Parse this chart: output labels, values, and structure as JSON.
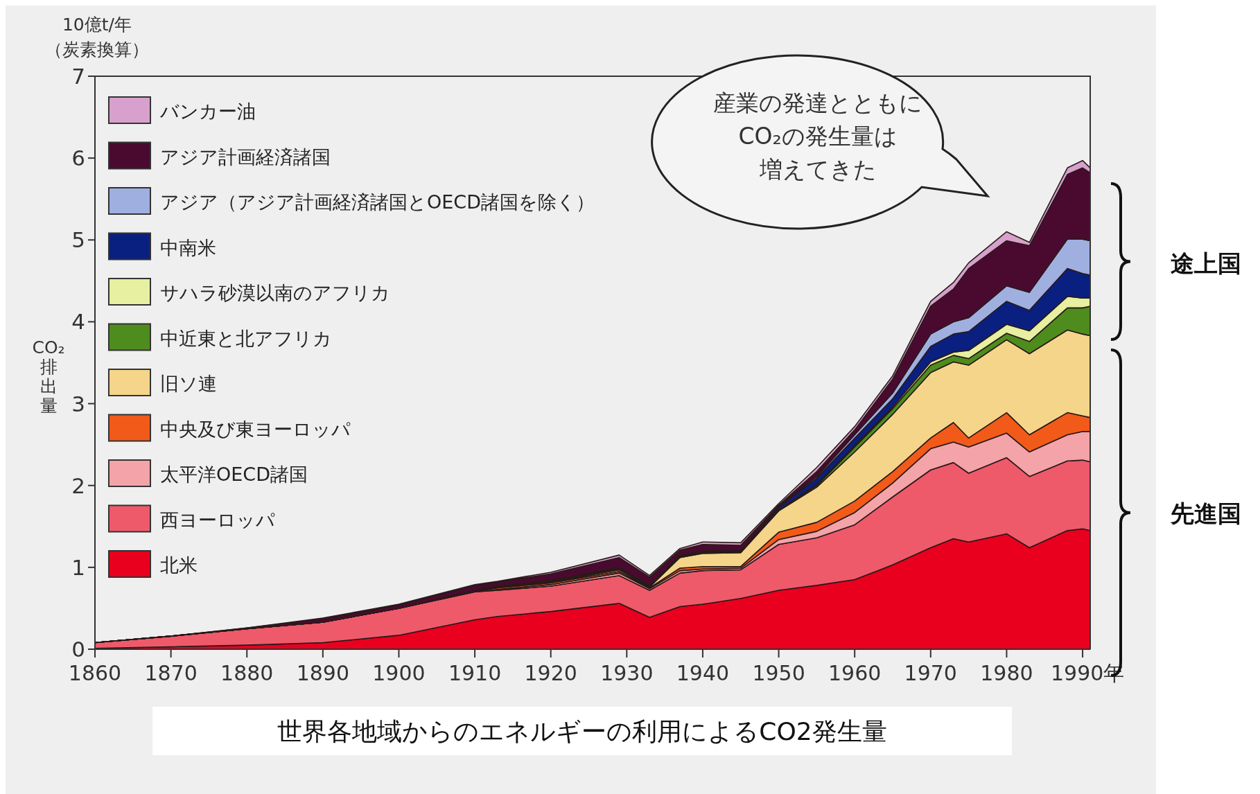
{
  "chart_data": {
    "type": "area",
    "stacked": true,
    "title": "世界各地域からのエネルギーの利用によるCO2発生量",
    "ylabel": "CO₂排出量",
    "annotations": [
      "10億t/年",
      "（炭素換算）",
      "産業の発達とともに",
      "CO₂の発生量は",
      "増えてきた",
      "途上国",
      "先進国"
    ],
    "x": [
      1860,
      1870,
      1880,
      1890,
      1900,
      1910,
      1913,
      1920,
      1929,
      1933,
      1937,
      1940,
      1945,
      1950,
      1955,
      1960,
      1965,
      1970,
      1973,
      1975,
      1980,
      1983,
      1988,
      1990,
      1991
    ],
    "xlim": [
      1860,
      1991
    ],
    "xticks": [
      1860,
      1870,
      1880,
      1890,
      1900,
      1910,
      1920,
      1930,
      1940,
      1950,
      1960,
      1970,
      1980,
      {
        "value": 1990,
        "label": "1990年"
      }
    ],
    "ylim": [
      0,
      7
    ],
    "yticks": [
      0,
      1,
      2,
      3,
      4,
      5,
      6,
      7
    ],
    "legend": "top left",
    "series": [
      {
        "name": "北米",
        "color": "#e8001e",
        "values": [
          0.01,
          0.03,
          0.05,
          0.08,
          0.17,
          0.36,
          0.4,
          0.46,
          0.56,
          0.39,
          0.52,
          0.55,
          0.62,
          0.72,
          0.78,
          0.85,
          1.03,
          1.24,
          1.35,
          1.31,
          1.41,
          1.24,
          1.45,
          1.47,
          1.45
        ]
      },
      {
        "name": "西ヨーロッパ",
        "color": "#ee5a6a",
        "values": [
          0.07,
          0.13,
          0.2,
          0.25,
          0.33,
          0.34,
          0.32,
          0.31,
          0.34,
          0.33,
          0.41,
          0.41,
          0.35,
          0.56,
          0.58,
          0.67,
          0.83,
          0.95,
          0.93,
          0.84,
          0.93,
          0.87,
          0.85,
          0.84,
          0.84
        ]
      },
      {
        "name": "太平洋OECD諸国",
        "color": "#f4a3a8",
        "values": [
          0,
          0,
          0,
          0,
          0,
          0,
          0.01,
          0.02,
          0.03,
          0.02,
          0.03,
          0.02,
          0.02,
          0.06,
          0.08,
          0.15,
          0.17,
          0.26,
          0.25,
          0.32,
          0.3,
          0.3,
          0.32,
          0.35,
          0.37
        ]
      },
      {
        "name": "中央及び東ヨーロッパ",
        "color": "#f25a1a",
        "values": [
          0,
          0,
          0,
          0,
          0,
          0.01,
          0.02,
          0.02,
          0.02,
          0.01,
          0.03,
          0.03,
          0.02,
          0.09,
          0.11,
          0.14,
          0.14,
          0.13,
          0.24,
          0.11,
          0.25,
          0.21,
          0.27,
          0.19,
          0.17
        ]
      },
      {
        "name": "旧ソ連",
        "color": "#f5d58a",
        "values": [
          0,
          0,
          0,
          0,
          0,
          0,
          0.01,
          0.01,
          0.02,
          0.01,
          0.13,
          0.16,
          0.17,
          0.26,
          0.43,
          0.6,
          0.7,
          0.8,
          0.74,
          0.89,
          0.89,
          0.99,
          1.01,
          1.0,
          1.0
        ]
      },
      {
        "name": "中近東と北アフリカ",
        "color": "#4e8c1e",
        "values": [
          0,
          0,
          0,
          0,
          0,
          0,
          0,
          0,
          0.01,
          0,
          0.01,
          0.01,
          0.01,
          0.01,
          0.02,
          0.06,
          0.07,
          0.09,
          0.08,
          0.08,
          0.08,
          0.15,
          0.27,
          0.32,
          0.36
        ]
      },
      {
        "name": "サハラ砂漠以南のアフリカ",
        "color": "#e6f0a0",
        "values": [
          0,
          0,
          0,
          0,
          0,
          0,
          0,
          0,
          0,
          0,
          0,
          0,
          0,
          0,
          0.01,
          0.02,
          0.02,
          0.04,
          0.04,
          0.1,
          0.11,
          0.13,
          0.14,
          0.12,
          0.1
        ]
      },
      {
        "name": "中南米",
        "color": "#0a2080",
        "values": [
          0,
          0,
          0,
          0,
          0,
          0.01,
          0.01,
          0.01,
          0.01,
          0.01,
          0.01,
          0.01,
          0.01,
          0.03,
          0.08,
          0.09,
          0.1,
          0.19,
          0.22,
          0.23,
          0.28,
          0.25,
          0.34,
          0.3,
          0.28
        ]
      },
      {
        "name": "アジア（アジア計画経済諸国とOECD諸国を除く）",
        "color": "#9fb0e0",
        "values": [
          0,
          0,
          0,
          0,
          0,
          0,
          0,
          0.01,
          0.01,
          0.01,
          0.01,
          0.01,
          0.01,
          0.01,
          0.02,
          0.04,
          0.07,
          0.15,
          0.15,
          0.17,
          0.19,
          0.22,
          0.36,
          0.42,
          0.42
        ]
      },
      {
        "name": "アジア計画経済諸国",
        "color": "#4a0a30",
        "values": [
          0,
          0,
          0.01,
          0.04,
          0.04,
          0.06,
          0.05,
          0.08,
          0.12,
          0.1,
          0.06,
          0.08,
          0.06,
          0.02,
          0.06,
          0.06,
          0.17,
          0.34,
          0.4,
          0.6,
          0.55,
          0.57,
          0.79,
          0.87,
          0.83
        ]
      },
      {
        "name": "バンカー油",
        "color": "#d8a0cc",
        "values": [
          0,
          0,
          0,
          0.01,
          0.01,
          0.01,
          0.01,
          0.02,
          0.03,
          0.02,
          0.02,
          0.03,
          0.03,
          0.02,
          0.05,
          0.04,
          0.04,
          0.06,
          0.08,
          0.07,
          0.11,
          0.04,
          0.08,
          0.09,
          0.06
        ]
      }
    ]
  }
}
